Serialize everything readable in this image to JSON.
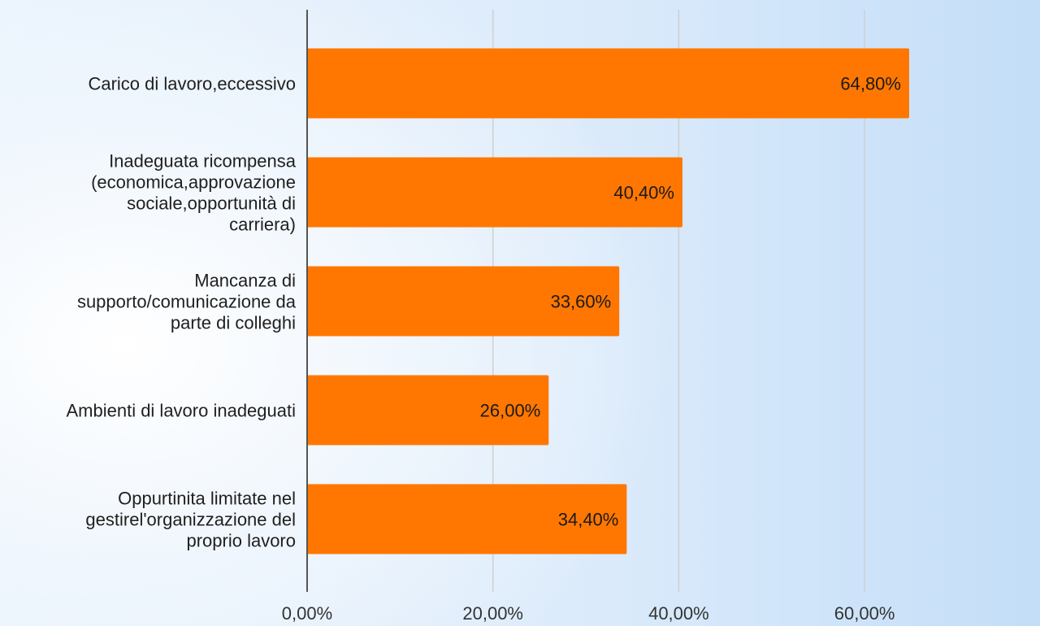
{
  "chart_data": {
    "type": "bar",
    "orientation": "horizontal",
    "categories": [
      "Carico di lavoro,eccessivo",
      "Inadeguata ricompensa (economica,approvazione sociale,opportunità di carriera)",
      "Mancanza di supporto/comunicazione da parte di colleghi",
      "Ambienti di lavoro inadeguati",
      "Oppurtinita limitate nel gestirel'organizzazione del proprio lavoro"
    ],
    "category_lines": [
      [
        "Carico di lavoro,eccessivo"
      ],
      [
        "Inadeguata ricompensa",
        "(economica,approvazione",
        "sociale,opportunità di",
        "carriera)"
      ],
      [
        "Mancanza di",
        "supporto/comunicazione da",
        "parte di colleghi"
      ],
      [
        "Ambienti di lavoro inadeguati"
      ],
      [
        "Oppurtinita limitate nel",
        "gestirel'organizzazione del",
        "proprio lavoro"
      ]
    ],
    "values": [
      64.8,
      40.4,
      33.6,
      26.0,
      34.4
    ],
    "data_labels": [
      "64,80%",
      "40,40%",
      "33,60%",
      "26,00%",
      "34,40%"
    ],
    "xlim": [
      0,
      70
    ],
    "xticks": [
      0,
      20,
      40,
      60
    ],
    "xtick_labels": [
      "0,00%",
      "20,00%",
      "40,00%",
      "60,00%"
    ],
    "grid": true,
    "legend": "none",
    "bar_color": "#ff7700",
    "grid_color": "#d0d0d0",
    "axis_color": "#555555"
  }
}
